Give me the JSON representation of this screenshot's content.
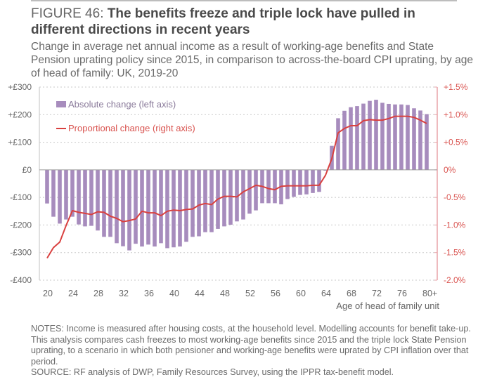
{
  "figure": {
    "label": "FIGURE 46: ",
    "title": "The benefits freeze and triple lock have pulled in different directions in recent years",
    "subtitle": "Change in average net annual income as a result of working-age benefits and State Pension uprating policy since 2015, in comparison to across-the-board CPI uprating, by age of head of family: UK, 2019-20"
  },
  "notes": "NOTES: Income is measured after housing costs, at the household level. Modelling accounts for benefit take-up. This analysis compares cash freezes to most working-age benefits since 2015 and the triple lock State Pension uprating, to a scenario in which both pensioner and working-age benefits were uprated by CPI inflation over that period.",
  "source": "SOURCE: RF analysis of DWP, Family Resources Survey, using the IPPR tax-benefit model.",
  "colors": {
    "bar": "#a78cbd",
    "line": "#d9403f",
    "right_axis": "#e8a3a8",
    "right_text": "#d9534f",
    "grid": "#c8c8c8",
    "text": "#555555"
  },
  "chart_data": {
    "type": "bar+line",
    "title": "The benefits freeze and triple lock have pulled in different directions in recent years",
    "xlabel": "Age of head of family unit",
    "ylabel_left": "",
    "ylabel_right": "",
    "ylim_left": [
      -400,
      300
    ],
    "ylim_right": [
      -2.0,
      1.5
    ],
    "grid": true,
    "legend_position": "top-left",
    "left_ticks": [
      "+£300",
      "+£200",
      "+£100",
      "£0",
      "-£100",
      "-£200",
      "-£300",
      "-£400"
    ],
    "left_tick_values": [
      300,
      200,
      100,
      0,
      -100,
      -200,
      -300,
      -400
    ],
    "right_ticks": [
      "+1.5%",
      "+1.0%",
      "+0.5%",
      "0%",
      "-0.5%",
      "-1.0%",
      "-1.5%",
      "-2.0%"
    ],
    "right_tick_values": [
      1.5,
      1.0,
      0.5,
      0,
      -0.5,
      -1.0,
      -1.5,
      -2.0
    ],
    "x_tick_labels": [
      "20",
      "24",
      "28",
      "32",
      "36",
      "40",
      "44",
      "48",
      "52",
      "56",
      "60",
      "64",
      "68",
      "72",
      "76",
      "80+"
    ],
    "x": [
      20,
      21,
      22,
      23,
      24,
      25,
      26,
      27,
      28,
      29,
      30,
      31,
      32,
      33,
      34,
      35,
      36,
      37,
      38,
      39,
      40,
      41,
      42,
      43,
      44,
      45,
      46,
      47,
      48,
      49,
      50,
      51,
      52,
      53,
      54,
      55,
      56,
      57,
      58,
      59,
      60,
      61,
      62,
      63,
      64,
      65,
      66,
      67,
      68,
      69,
      70,
      71,
      72,
      73,
      74,
      75,
      76,
      77,
      78,
      79,
      80
    ],
    "series": [
      {
        "name": "Absolute change (left axis)",
        "axis": "left",
        "kind": "bar",
        "values": [
          -122,
          -170,
          -195,
          -180,
          -170,
          -198,
          -205,
          -203,
          -220,
          -243,
          -243,
          -266,
          -277,
          -292,
          -268,
          -278,
          -271,
          -278,
          -266,
          -284,
          -281,
          -278,
          -261,
          -243,
          -241,
          -226,
          -226,
          -214,
          -205,
          -199,
          -187,
          -180,
          -159,
          -147,
          -121,
          -121,
          -121,
          -125,
          -106,
          -98,
          -91,
          -89,
          -84,
          -80,
          -3,
          87,
          187,
          214,
          227,
          231,
          240,
          250,
          254,
          243,
          239,
          237,
          237,
          235,
          223,
          215,
          202
        ]
      },
      {
        "name": "Proportional change (right axis)",
        "axis": "right",
        "kind": "line",
        "values": [
          -1.6,
          -1.41,
          -1.31,
          -1.01,
          -0.74,
          -0.77,
          -0.79,
          -0.81,
          -0.76,
          -0.77,
          -0.84,
          -0.88,
          -0.94,
          -0.92,
          -0.89,
          -0.75,
          -0.78,
          -0.78,
          -0.83,
          -0.75,
          -0.73,
          -0.74,
          -0.72,
          -0.71,
          -0.64,
          -0.61,
          -0.63,
          -0.53,
          -0.48,
          -0.48,
          -0.49,
          -0.4,
          -0.34,
          -0.28,
          -0.3,
          -0.34,
          -0.36,
          -0.3,
          -0.29,
          -0.29,
          -0.29,
          -0.29,
          -0.28,
          -0.28,
          -0.1,
          0.2,
          0.67,
          0.75,
          0.8,
          0.8,
          0.89,
          0.91,
          0.9,
          0.9,
          0.93,
          0.97,
          0.97,
          0.97,
          0.95,
          0.9,
          0.84
        ]
      }
    ]
  }
}
